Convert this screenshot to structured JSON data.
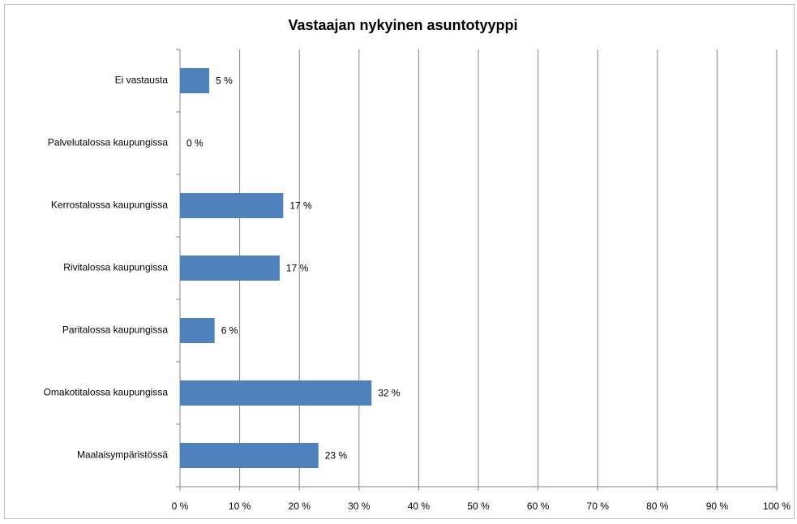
{
  "chart_data": {
    "type": "bar",
    "orientation": "horizontal",
    "title": "Vastaajan nykyinen asuntotyyppi",
    "categories": [
      "Ei vastausta",
      "Palvelutalossa kaupungissa",
      "Kerrostalossa kaupungissa",
      "Rivitalossa kaupungissa",
      "Paritalossa kaupungissa",
      "Omakotitalossa kaupungissa",
      "Maalaisympäristössä"
    ],
    "values": [
      4.9,
      0,
      17.3,
      16.7,
      5.8,
      32.1,
      23.2
    ],
    "value_labels": [
      "5 %",
      "0 %",
      "17 %",
      "17 %",
      "6 %",
      "32 %",
      "23 %"
    ],
    "color": "#4f81bd",
    "xlim": [
      0,
      100
    ],
    "xticks": [
      {
        "value": 0,
        "label": "0 %"
      },
      {
        "value": 10,
        "label": "10 %"
      },
      {
        "value": 20,
        "label": "20 %"
      },
      {
        "value": 30,
        "label": "30 %"
      },
      {
        "value": 40,
        "label": "40 %"
      },
      {
        "value": 50,
        "label": "50 %"
      },
      {
        "value": 60,
        "label": "60 %"
      },
      {
        "value": 70,
        "label": "70 %"
      },
      {
        "value": 80,
        "label": "80 %"
      },
      {
        "value": 90,
        "label": "90 %"
      },
      {
        "value": 100,
        "label": "100 %"
      }
    ],
    "grid": true
  }
}
